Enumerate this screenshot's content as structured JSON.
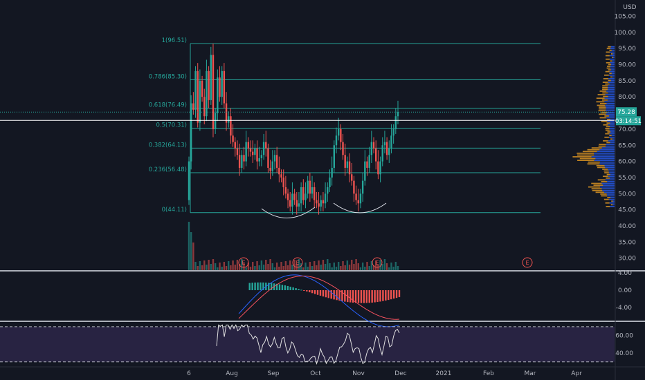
{
  "chart_data": {
    "type": "candlestick",
    "currency": "USD",
    "price_axis": {
      "ticks": [
        "105.00",
        "100.00",
        "95.00",
        "90.00",
        "85.00",
        "80.00",
        "75.00",
        "70.00",
        "65.00",
        "60.00",
        "55.00",
        "50.00",
        "45.00",
        "40.00",
        "35.00",
        "30.00"
      ],
      "range": [
        26,
        108
      ]
    },
    "last_price": {
      "value": 75.28,
      "label": "75.28"
    },
    "countdown": "03:14:51",
    "marked_price": 72.7,
    "time_axis": {
      "ticks": [
        "6",
        "Aug",
        "Sep",
        "Oct",
        "Nov",
        "Dec",
        "2021",
        "Feb",
        "Mar",
        "Apr"
      ]
    },
    "fibonacci": {
      "levels": [
        {
          "label": "1(96.51)",
          "value": 96.51
        },
        {
          "label": "0.786(85.30)",
          "value": 85.3
        },
        {
          "label": "0.618(76.49)",
          "value": 76.49
        },
        {
          "label": "0.5(70.31)",
          "value": 70.31
        },
        {
          "label": "0.382(64.13)",
          "value": 64.13
        },
        {
          "label": "0.236(56.48)",
          "value": 56.48
        },
        {
          "label": "0(44.11)",
          "value": 44.11
        }
      ],
      "color": "#26a69a"
    },
    "earnings_markers": [
      {
        "label": "E"
      },
      {
        "label": "E"
      },
      {
        "label": "E"
      },
      {
        "label": "E"
      }
    ],
    "candles_close_approx": [
      60,
      78,
      76,
      88,
      72,
      85,
      80,
      74,
      88,
      79,
      93,
      70,
      75,
      86,
      80,
      88,
      78,
      72,
      74,
      68,
      66,
      64,
      62,
      58,
      62,
      60,
      66,
      64,
      63,
      62,
      64,
      60,
      61,
      62,
      66,
      64,
      58,
      57,
      60,
      62,
      58,
      56,
      55,
      52,
      50,
      48,
      46,
      50,
      48,
      46,
      47,
      52,
      48,
      50,
      54,
      50,
      52,
      48,
      47,
      46,
      48,
      47,
      50,
      52,
      55,
      58,
      65,
      68,
      70,
      66,
      62,
      58,
      60,
      56,
      54,
      50,
      48,
      47,
      50,
      54,
      60,
      58,
      62,
      66,
      64,
      60,
      56,
      60,
      65,
      66,
      62,
      64,
      68,
      70,
      74,
      75.28
    ],
    "macd": {
      "axis_ticks": [
        "4.00",
        "0.00",
        "-4.00"
      ],
      "colors": {
        "macd": "#2962ff",
        "signal": "#f7525f",
        "hist_pos": "#26a69a",
        "hist_neg": "#ef5350"
      }
    },
    "rsi": {
      "axis_ticks": [
        "60.00",
        "40.00"
      ],
      "band": [
        30,
        70
      ],
      "line_color": "#e0e0e0",
      "band_color": "#7e57c2"
    }
  }
}
